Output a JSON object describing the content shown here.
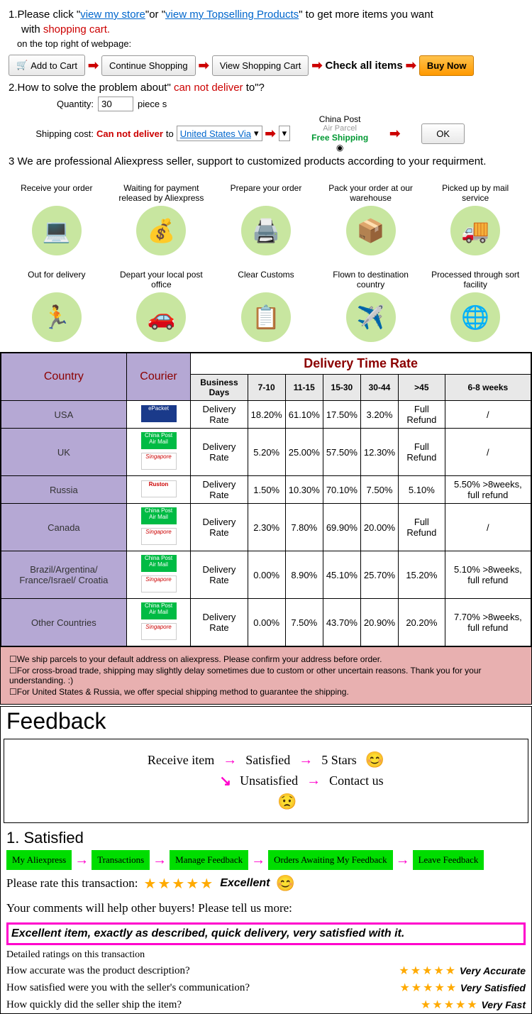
{
  "section1": {
    "step1_prefix": "1.Please click \"",
    "link_store": "view my store",
    "step1_mid": "\"or \"",
    "link_topsell": "view my Topselling Products",
    "step1_suffix": "\" to get more items you want",
    "step1_line2_pre": "with ",
    "shopping_cart": "shopping cart.",
    "subline": "on the top right of webpage:",
    "btn_addcart": "Add to Cart",
    "btn_continue": "Continue Shopping",
    "btn_viewcart": "View Shopping Cart",
    "check_all": "Check all items",
    "btn_buynow": "Buy Now",
    "step2_pre": "2.How to solve the problem about\" ",
    "step2_red": "can not deliver",
    "step2_suf": " to\"?",
    "qty_label": "Quantity:",
    "qty_val": "30",
    "pieces": "piece s",
    "ship_label": "Shipping cost:",
    "cannot_deliver": "Can not deliver",
    "to": " to ",
    "usa_via": "United States Via",
    "china_post": "China Post",
    "air_parcel": "Air Parcel",
    "free_ship": "Free Shipping",
    "ok_btn": "OK",
    "step3": "3 We are professional Aliexpress seller, support to customized products according to your requirment."
  },
  "process": [
    "Receive your order",
    "Waiting for payment released by Aliexpress",
    "Prepare your order",
    "Pack your order at our warehouse",
    "Picked up by mail service",
    "Out for delivery",
    "Depart your local post office",
    "Clear Customs",
    "Flown to destination country",
    "Processed through sort facility"
  ],
  "process_icons": [
    "💻",
    "💰",
    "🖨️",
    "📦",
    "🚚",
    "🏃",
    "🚗",
    "📋",
    "✈️",
    "🌐"
  ],
  "table": {
    "h_country": "Country",
    "h_courier": "Courier",
    "h_delivery": "Delivery Time Rate",
    "sub_headers": [
      "Business Days",
      "7-10",
      "11-15",
      "15-30",
      "30-44",
      ">45",
      "6-8 weeks"
    ],
    "rows": [
      {
        "country": "USA",
        "courier": [
          "ePacket"
        ],
        "label": "Delivery Rate",
        "cells": [
          "18.20%",
          "61.10%",
          "17.50%",
          "3.20%",
          "Full Refund",
          "/"
        ]
      },
      {
        "country": "UK",
        "courier": [
          "China Post Air Mail",
          "Singapore"
        ],
        "label": "Delivery Rate",
        "cells": [
          "5.20%",
          "25.00%",
          "57.50%",
          "12.30%",
          "Full Refund",
          "/"
        ]
      },
      {
        "country": "Russia",
        "courier": [
          "Ruston"
        ],
        "label": "Delivery Rate",
        "cells": [
          "1.50%",
          "10.30%",
          "70.10%",
          "7.50%",
          "5.10%",
          "5.50% >8weeks, full refund"
        ]
      },
      {
        "country": "Canada",
        "courier": [
          "China Post Air Mail",
          "Singapore"
        ],
        "label": "Delivery Rate",
        "cells": [
          "2.30%",
          "7.80%",
          "69.90%",
          "20.00%",
          "Full Refund",
          "/"
        ]
      },
      {
        "country": "Brazil/Argentina/ France/Israel/ Croatia",
        "courier": [
          "China Post Air Mail",
          "Singapore"
        ],
        "label": "Delivery Rate",
        "cells": [
          "0.00%",
          "8.90%",
          "45.10%",
          "25.70%",
          "15.20%",
          "5.10% >8weeks, full refund"
        ]
      },
      {
        "country": "Other Countries",
        "courier": [
          "China Post Air Mail",
          "Singapore"
        ],
        "label": "Delivery Rate",
        "cells": [
          "0.00%",
          "7.50%",
          "43.70%",
          "20.90%",
          "20.20%",
          "7.70% >8weeks, full refund"
        ]
      }
    ]
  },
  "notes": [
    "☐We ship parcels to your default address on aliexpress. Please confirm your address before order.",
    "☐For cross-broad trade, shipping may slightly delay sometimes due to custom or other uncertain reasons. Thank you for your understanding. :)",
    "☐For United States & Russia, we offer special shipping method to guarantee the shipping."
  ],
  "feedback": {
    "title": "Feedback",
    "receive": "Receive item",
    "satisfied": "Satisfied",
    "five_stars": "5 Stars",
    "unsatisfied": "Unsatisfied",
    "contact": "Contact us",
    "sat_title": "1. Satisfied",
    "green_steps": [
      "My Aliexpress",
      "Transactions",
      "Manage Feedback",
      "Orders Awaiting My Feedback",
      "Leave Feedback"
    ],
    "rate_prompt": "Please rate this transaction:",
    "excellent": "Excellent",
    "comments_prompt": "Your comments will help other buyers! Please tell us more:",
    "comment_text": "Excellent item, exactly as described, quick delivery, very satisfied with it.",
    "detail_title": "Detailed ratings on this transaction",
    "q1": "How accurate was the product description?",
    "a1": "Very Accurate",
    "q2": "How satisfied were you with the seller's communication?",
    "a2": "Very Satisfied",
    "q3": "How quickly did the seller ship the item?",
    "a3": "Very Fast"
  }
}
